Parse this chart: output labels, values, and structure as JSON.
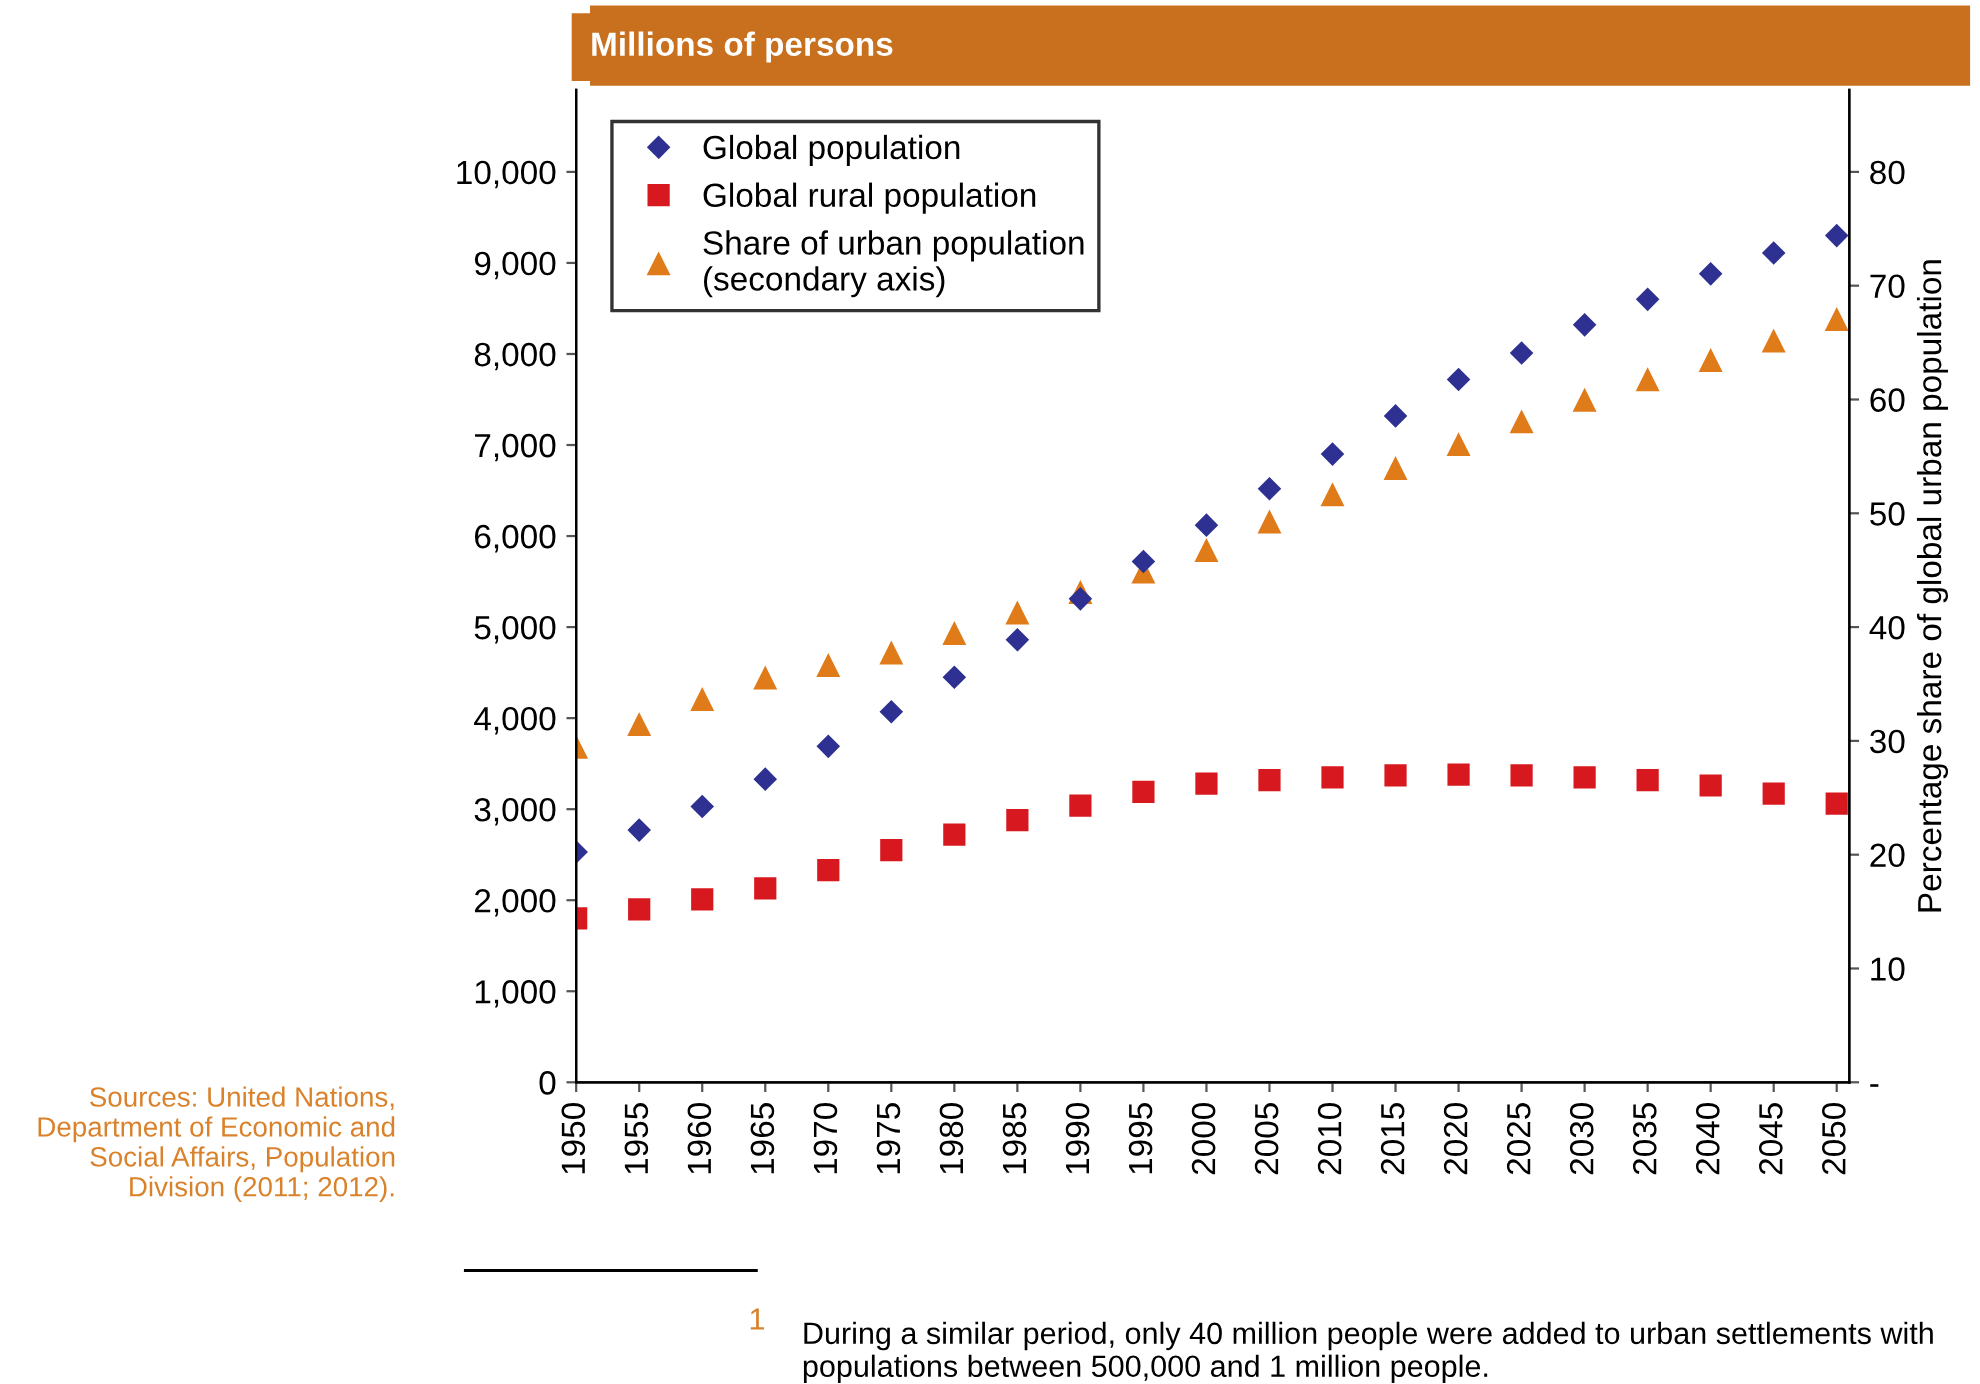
{
  "chart_data": {
    "type": "scatter",
    "title": "Millions of persons",
    "y2label": "Percentage share of global urban population",
    "x": [
      1950,
      1955,
      1960,
      1965,
      1970,
      1975,
      1980,
      1985,
      1990,
      1995,
      2000,
      2005,
      2010,
      2015,
      2020,
      2025,
      2030,
      2035,
      2040,
      2045,
      2050
    ],
    "series": [
      {
        "name": "Global population",
        "color": "#2e3192",
        "marker": "diamond",
        "values": [
          2530,
          2770,
          3030,
          3330,
          3690,
          4070,
          4450,
          4860,
          5310,
          5720,
          6120,
          6520,
          6900,
          7320,
          7720,
          8010,
          8320,
          8600,
          8880,
          9110,
          9300
        ]
      },
      {
        "name": "Global rural population",
        "color": "#d7191f",
        "marker": "square",
        "values": [
          1800,
          1900,
          2010,
          2130,
          2330,
          2550,
          2720,
          2880,
          3040,
          3190,
          3280,
          3320,
          3350,
          3370,
          3380,
          3370,
          3350,
          3320,
          3260,
          3170,
          3060
        ]
      },
      {
        "name": "Share of urban population\n(secondary axis)",
        "color": "#e07b1a",
        "marker": "triangle",
        "axis": "y2",
        "values": [
          29.4,
          31.4,
          33.6,
          35.5,
          36.6,
          37.7,
          39.4,
          41.2,
          43.0,
          44.8,
          46.7,
          49.2,
          51.6,
          53.9,
          56.0,
          58.0,
          59.9,
          61.7,
          63.4,
          65.1,
          67.0
        ]
      }
    ],
    "xlim": [
      1950,
      2051
    ],
    "xticks": [
      1950,
      1955,
      1960,
      1965,
      1970,
      1975,
      1980,
      1985,
      1990,
      1995,
      2000,
      2005,
      2010,
      2015,
      2020,
      2025,
      2030,
      2035,
      2040,
      2045,
      2050
    ],
    "ylim": [
      0,
      10900
    ],
    "yticks": [
      {
        "value": 0,
        "label": "0"
      },
      {
        "value": 1000,
        "label": "1,000"
      },
      {
        "value": 2000,
        "label": "2,000"
      },
      {
        "value": 3000,
        "label": "3,000"
      },
      {
        "value": 4000,
        "label": "4,000"
      },
      {
        "value": 5000,
        "label": "5,000"
      },
      {
        "value": 6000,
        "label": "6,000"
      },
      {
        "value": 7000,
        "label": "7,000"
      },
      {
        "value": 8000,
        "label": "8,000"
      },
      {
        "value": 9000,
        "label": "9,000"
      },
      {
        "value": 10000,
        "label": "10,000"
      }
    ],
    "y2lim": [
      0,
      87.2
    ],
    "y2ticks": [
      {
        "value": 0,
        "label": "-"
      },
      10,
      20,
      30,
      40,
      50,
      60,
      70,
      80
    ],
    "legend": "top left",
    "grid": false,
    "annotations": [
      "Sources: United Nations, Department of Economic and Social Affairs, Population Division (2011; 2012).",
      "1",
      "During a similar period, only 40 million people were added to urban settlements with populations between 500,000 and 1 million people."
    ]
  }
}
